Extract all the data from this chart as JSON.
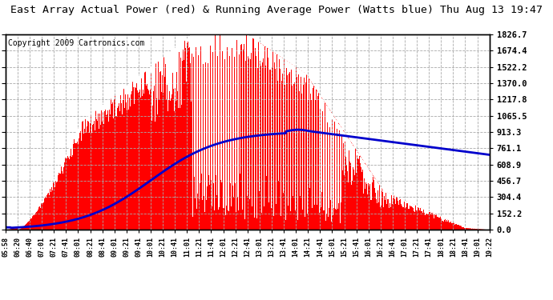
{
  "title": "East Array Actual Power (red) & Running Average Power (Watts blue) Thu Aug 13 19:47",
  "copyright": "Copyright 2009 Cartronics.com",
  "background_color": "#ffffff",
  "plot_bg_color": "#ffffff",
  "grid_color": "#aaaaaa",
  "yticks": [
    0.0,
    152.2,
    304.4,
    456.7,
    608.9,
    761.1,
    913.3,
    1065.5,
    1217.8,
    1370.0,
    1522.2,
    1674.4,
    1826.7
  ],
  "ymax": 1826.7,
  "xtick_labels": [
    "05:58",
    "06:20",
    "06:40",
    "07:01",
    "07:21",
    "07:41",
    "08:01",
    "08:21",
    "08:41",
    "09:01",
    "09:21",
    "09:41",
    "10:01",
    "10:21",
    "10:41",
    "11:01",
    "11:21",
    "11:41",
    "12:01",
    "12:21",
    "12:41",
    "13:01",
    "13:21",
    "13:41",
    "14:01",
    "14:21",
    "14:41",
    "15:01",
    "15:21",
    "15:41",
    "16:01",
    "16:21",
    "16:41",
    "17:01",
    "17:21",
    "17:41",
    "18:01",
    "18:21",
    "18:41",
    "19:01",
    "19:22"
  ],
  "actual_color": "#ff0000",
  "avg_color": "#0000cc",
  "title_fontsize": 9.5,
  "copyright_fontsize": 7
}
